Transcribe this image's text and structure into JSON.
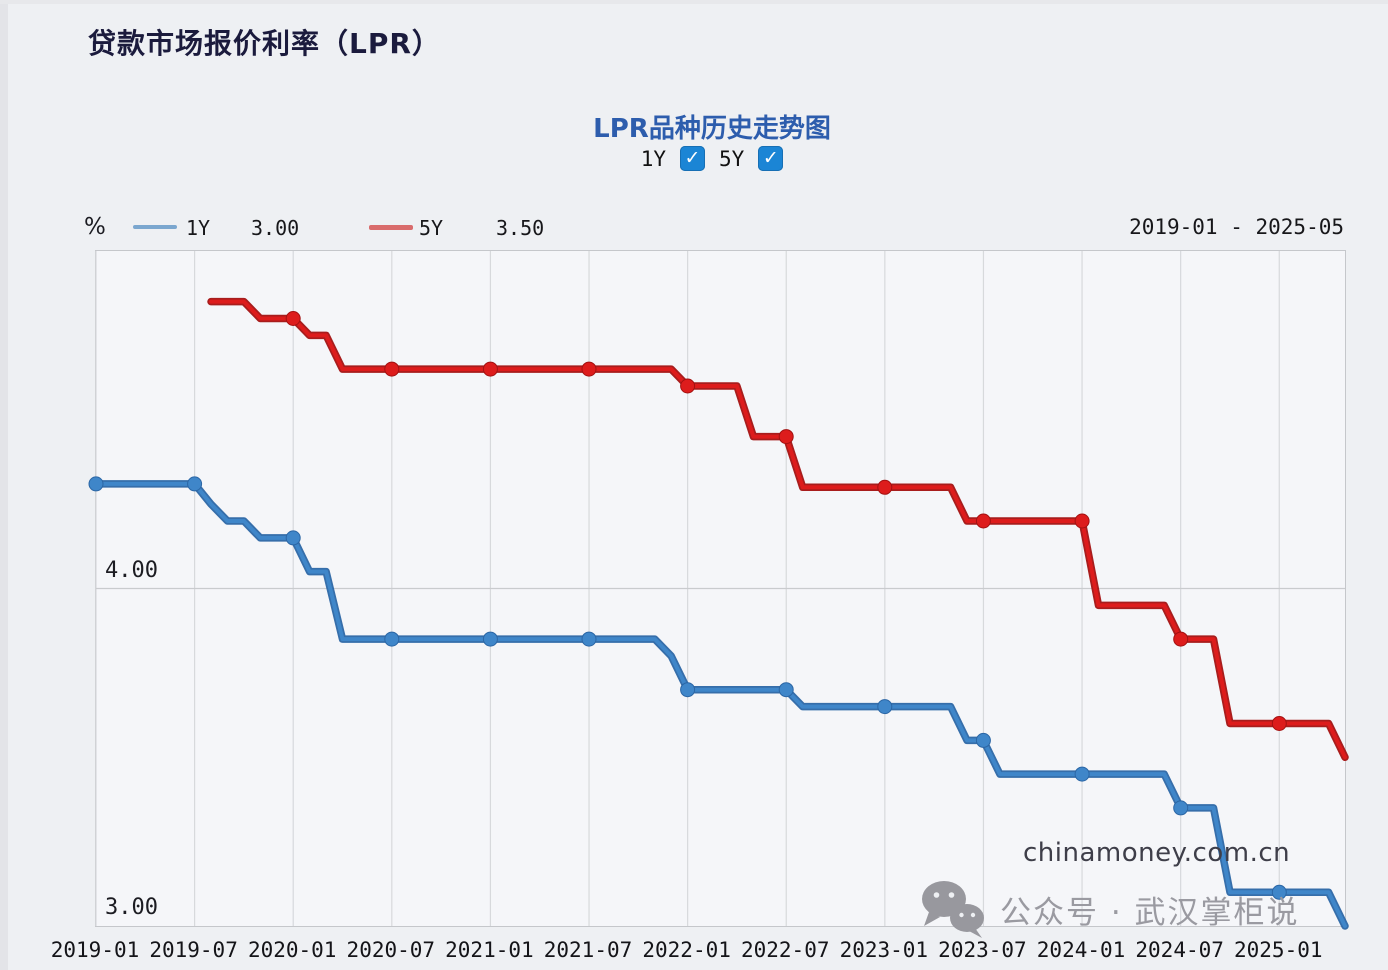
{
  "page": {
    "title": "贷款市场报价利率（LPR）"
  },
  "chart_header": {
    "title": "LPR品种历史走势图",
    "toggles": [
      {
        "label": "1Y",
        "checked": true
      },
      {
        "label": "5Y",
        "checked": true
      }
    ]
  },
  "legend": {
    "unit": "%",
    "items": [
      {
        "label": "1Y",
        "value": "3.00",
        "color": "#3f86c9"
      },
      {
        "label": "5Y",
        "value": "3.50",
        "color": "#dd1c1c"
      }
    ],
    "date_range": "2019-01 - 2025-05"
  },
  "watermarks": {
    "site": "chinamoney.com.cn",
    "account": "公众号 · 武汉掌柜说",
    "icon": "wechat-icon"
  },
  "colors": {
    "page_bg": "#eef0f3",
    "plot_bg": "#f5f6f9",
    "grid": "#d7d9dc",
    "grid_h": "#c9cbce",
    "plot_border": "#c5c7cb",
    "checkbox_blue": "#1b85d5",
    "title_navy": "#1b1b3d",
    "chart_title_blue": "#2d5dad",
    "watermark_gray": "#9a9aa1"
  },
  "chart_data": {
    "type": "line",
    "title": "LPR品种历史走势图",
    "x_start": "2019-01",
    "x_end": "2025-05",
    "x_unit": "month",
    "y_min": 3.0,
    "y_max": 5.0,
    "y_unit": "%",
    "grid": true,
    "y_gridlines": [
      4.0
    ],
    "y_axis_labels": [
      {
        "value": 4.0,
        "label": "4.00"
      },
      {
        "value": 3.0,
        "label": "3.00"
      }
    ],
    "x_tick_labels": [
      "2019-01",
      "2019-07",
      "2020-01",
      "2020-07",
      "2021-01",
      "2021-07",
      "2022-01",
      "2022-07",
      "2023-01",
      "2023-07",
      "2024-01",
      "2024-07",
      "2025-01"
    ],
    "x_tick_interval_months": 6,
    "marker_interval_months": 6,
    "legend_position": "top-left",
    "series": [
      {
        "name": "1Y",
        "color": "#3f86c9",
        "edge_color": "#2b66a5",
        "latest_value": 3.0,
        "levels": [
          [
            "2019-01",
            "2019-07",
            4.31
          ],
          [
            "2019-08",
            "2019-08",
            4.25
          ],
          [
            "2019-09",
            "2019-10",
            4.2
          ],
          [
            "2019-11",
            "2020-01",
            4.15
          ],
          [
            "2020-02",
            "2020-03",
            4.05
          ],
          [
            "2020-04",
            "2021-11",
            3.85
          ],
          [
            "2021-12",
            "2021-12",
            3.8
          ],
          [
            "2022-01",
            "2022-07",
            3.7
          ],
          [
            "2022-08",
            "2023-05",
            3.65
          ],
          [
            "2023-06",
            "2023-07",
            3.55
          ],
          [
            "2023-08",
            "2024-06",
            3.45
          ],
          [
            "2024-07",
            "2024-09",
            3.35
          ],
          [
            "2024-10",
            "2025-04",
            3.1
          ],
          [
            "2025-05",
            "2025-05",
            3.0
          ]
        ]
      },
      {
        "name": "5Y",
        "color": "#dd1c1c",
        "edge_color": "#a31111",
        "latest_value": 3.5,
        "levels": [
          [
            "2019-08",
            "2019-10",
            4.85
          ],
          [
            "2019-11",
            "2020-01",
            4.8
          ],
          [
            "2020-02",
            "2020-03",
            4.75
          ],
          [
            "2020-04",
            "2021-12",
            4.65
          ],
          [
            "2022-01",
            "2022-04",
            4.6
          ],
          [
            "2022-05",
            "2022-07",
            4.45
          ],
          [
            "2022-08",
            "2023-05",
            4.3
          ],
          [
            "2023-06",
            "2024-01",
            4.2
          ],
          [
            "2024-02",
            "2024-06",
            3.95
          ],
          [
            "2024-07",
            "2024-09",
            3.85
          ],
          [
            "2024-10",
            "2025-04",
            3.6
          ],
          [
            "2025-05",
            "2025-05",
            3.5
          ]
        ]
      }
    ]
  }
}
